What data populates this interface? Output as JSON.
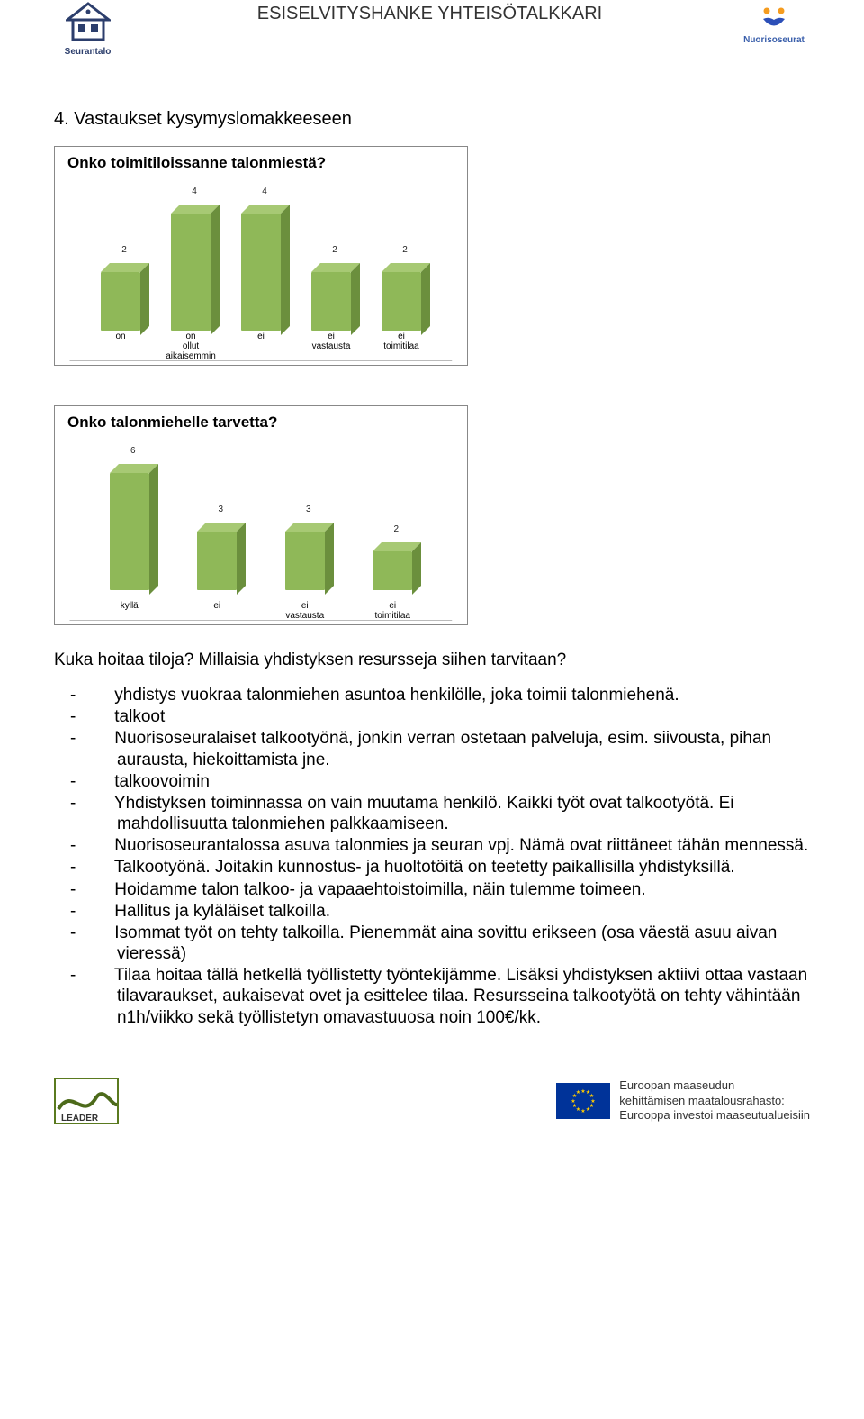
{
  "header": {
    "title": "ESISELVITYSHANKE YHTEISÖTALKKARI",
    "left_logo_label": "Seurantalo",
    "right_logo_label": "Nuorisoseurat"
  },
  "section_title": "4. Vastaukset kysymyslomakkeeseen",
  "chart1": {
    "type": "bar",
    "title": "Onko toimitiloissanne talonmiestä?",
    "categories": [
      "on",
      "on ollut aikaisemmin",
      "ei",
      "ei vastausta",
      "ei toimitilaa"
    ],
    "values": [
      2,
      4,
      4,
      2,
      2
    ],
    "ymax": 4,
    "bar_front_color": "#8fb858",
    "bar_top_color": "#a7c974",
    "bar_side_color": "#6b8f3d",
    "value_label_fontsize": 10,
    "category_fontsize": 10,
    "title_fontsize": 17,
    "border_color": "#888888",
    "background": "#ffffff"
  },
  "chart2": {
    "type": "bar",
    "title": "Onko talonmiehelle tarvetta?",
    "categories": [
      "kyllä",
      "ei",
      "ei vastausta",
      "ei toimitilaa"
    ],
    "values": [
      6,
      3,
      3,
      2
    ],
    "ymax": 6,
    "bar_front_color": "#8fb858",
    "bar_top_color": "#a7c974",
    "bar_side_color": "#6b8f3d",
    "value_label_fontsize": 10,
    "category_fontsize": 10,
    "title_fontsize": 17,
    "border_color": "#888888",
    "background": "#ffffff"
  },
  "question": "Kuka hoitaa tiloja? Millaisia yhdistyksen resursseja siihen tarvitaan?",
  "answers": [
    "yhdistys vuokraa talonmiehen asuntoa henkilölle, joka toimii talonmiehenä.",
    "talkoot",
    "Nuorisoseuralaiset talkootyönä, jonkin verran ostetaan palveluja, esim. siivousta, pihan aurausta, hiekoittamista jne.",
    "talkoovoimin",
    "Yhdistyksen toiminnassa on vain muutama henkilö. Kaikki työt ovat talkootyötä. Ei mahdollisuutta talonmiehen palkkaamiseen.",
    "Nuorisoseurantalossa asuva talonmies ja seuran vpj. Nämä ovat riittäneet tähän mennessä.",
    "Talkootyönä. Joitakin kunnostus- ja huoltotöitä on teetetty paikallisilla yhdistyksillä.",
    "Hoidamme talon talkoo- ja vapaaehtoistoimilla, näin tulemme toimeen.",
    "Hallitus ja kyläläiset talkoilla.",
    "Isommat työt on tehty talkoilla. Pienemmät aina sovittu erikseen (osa väestä asuu aivan vieressä)",
    "Tilaa hoitaa tällä hetkellä työllistetty työntekijämme. Lisäksi yhdistyksen aktiivi ottaa vastaan tilavaraukset, aukaisevat ovet ja esittelee tilaa. Resursseina talkootyötä on tehty vähintään n1h/viikko sekä työllistetyn omavastuuosa noin 100€/kk."
  ],
  "footer": {
    "leader_label": "LEADER",
    "eu_line1": "Euroopan maaseudun",
    "eu_line2": "kehittämisen maatalousrahasto:",
    "eu_line3": "Eurooppa investoi maaseutualueisiin"
  },
  "colors": {
    "house_blue": "#2c3e6c",
    "text_dark": "#000000"
  }
}
